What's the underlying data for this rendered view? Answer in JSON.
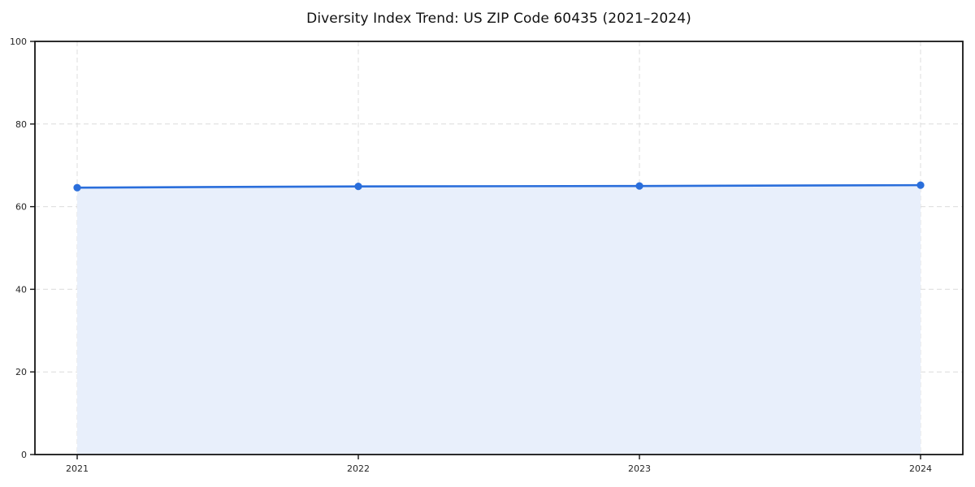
{
  "chart_data": {
    "type": "line",
    "title": "Diversity Index Trend: US ZIP Code 60435 (2021–2024)",
    "categories": [
      "2021",
      "2022",
      "2023",
      "2024"
    ],
    "values": [
      64.6,
      64.9,
      65.0,
      65.2
    ],
    "series_name": "Diversity Index",
    "xlabel": "",
    "ylabel": "",
    "ylim": [
      0,
      100
    ],
    "yticks": [
      0,
      20,
      40,
      60,
      80,
      100
    ],
    "grid": "dashed, both axes",
    "legend": "none",
    "marker": "circle",
    "area_fill": true,
    "colors": {
      "line": "#2A6EDB",
      "marker": "#2A6EDB",
      "area": "#E8EFFB",
      "grid": "#DCDCDC",
      "spine": "#141414",
      "tick_text": "#262626",
      "title_text": "#111111",
      "background": "#FFFFFF"
    }
  }
}
